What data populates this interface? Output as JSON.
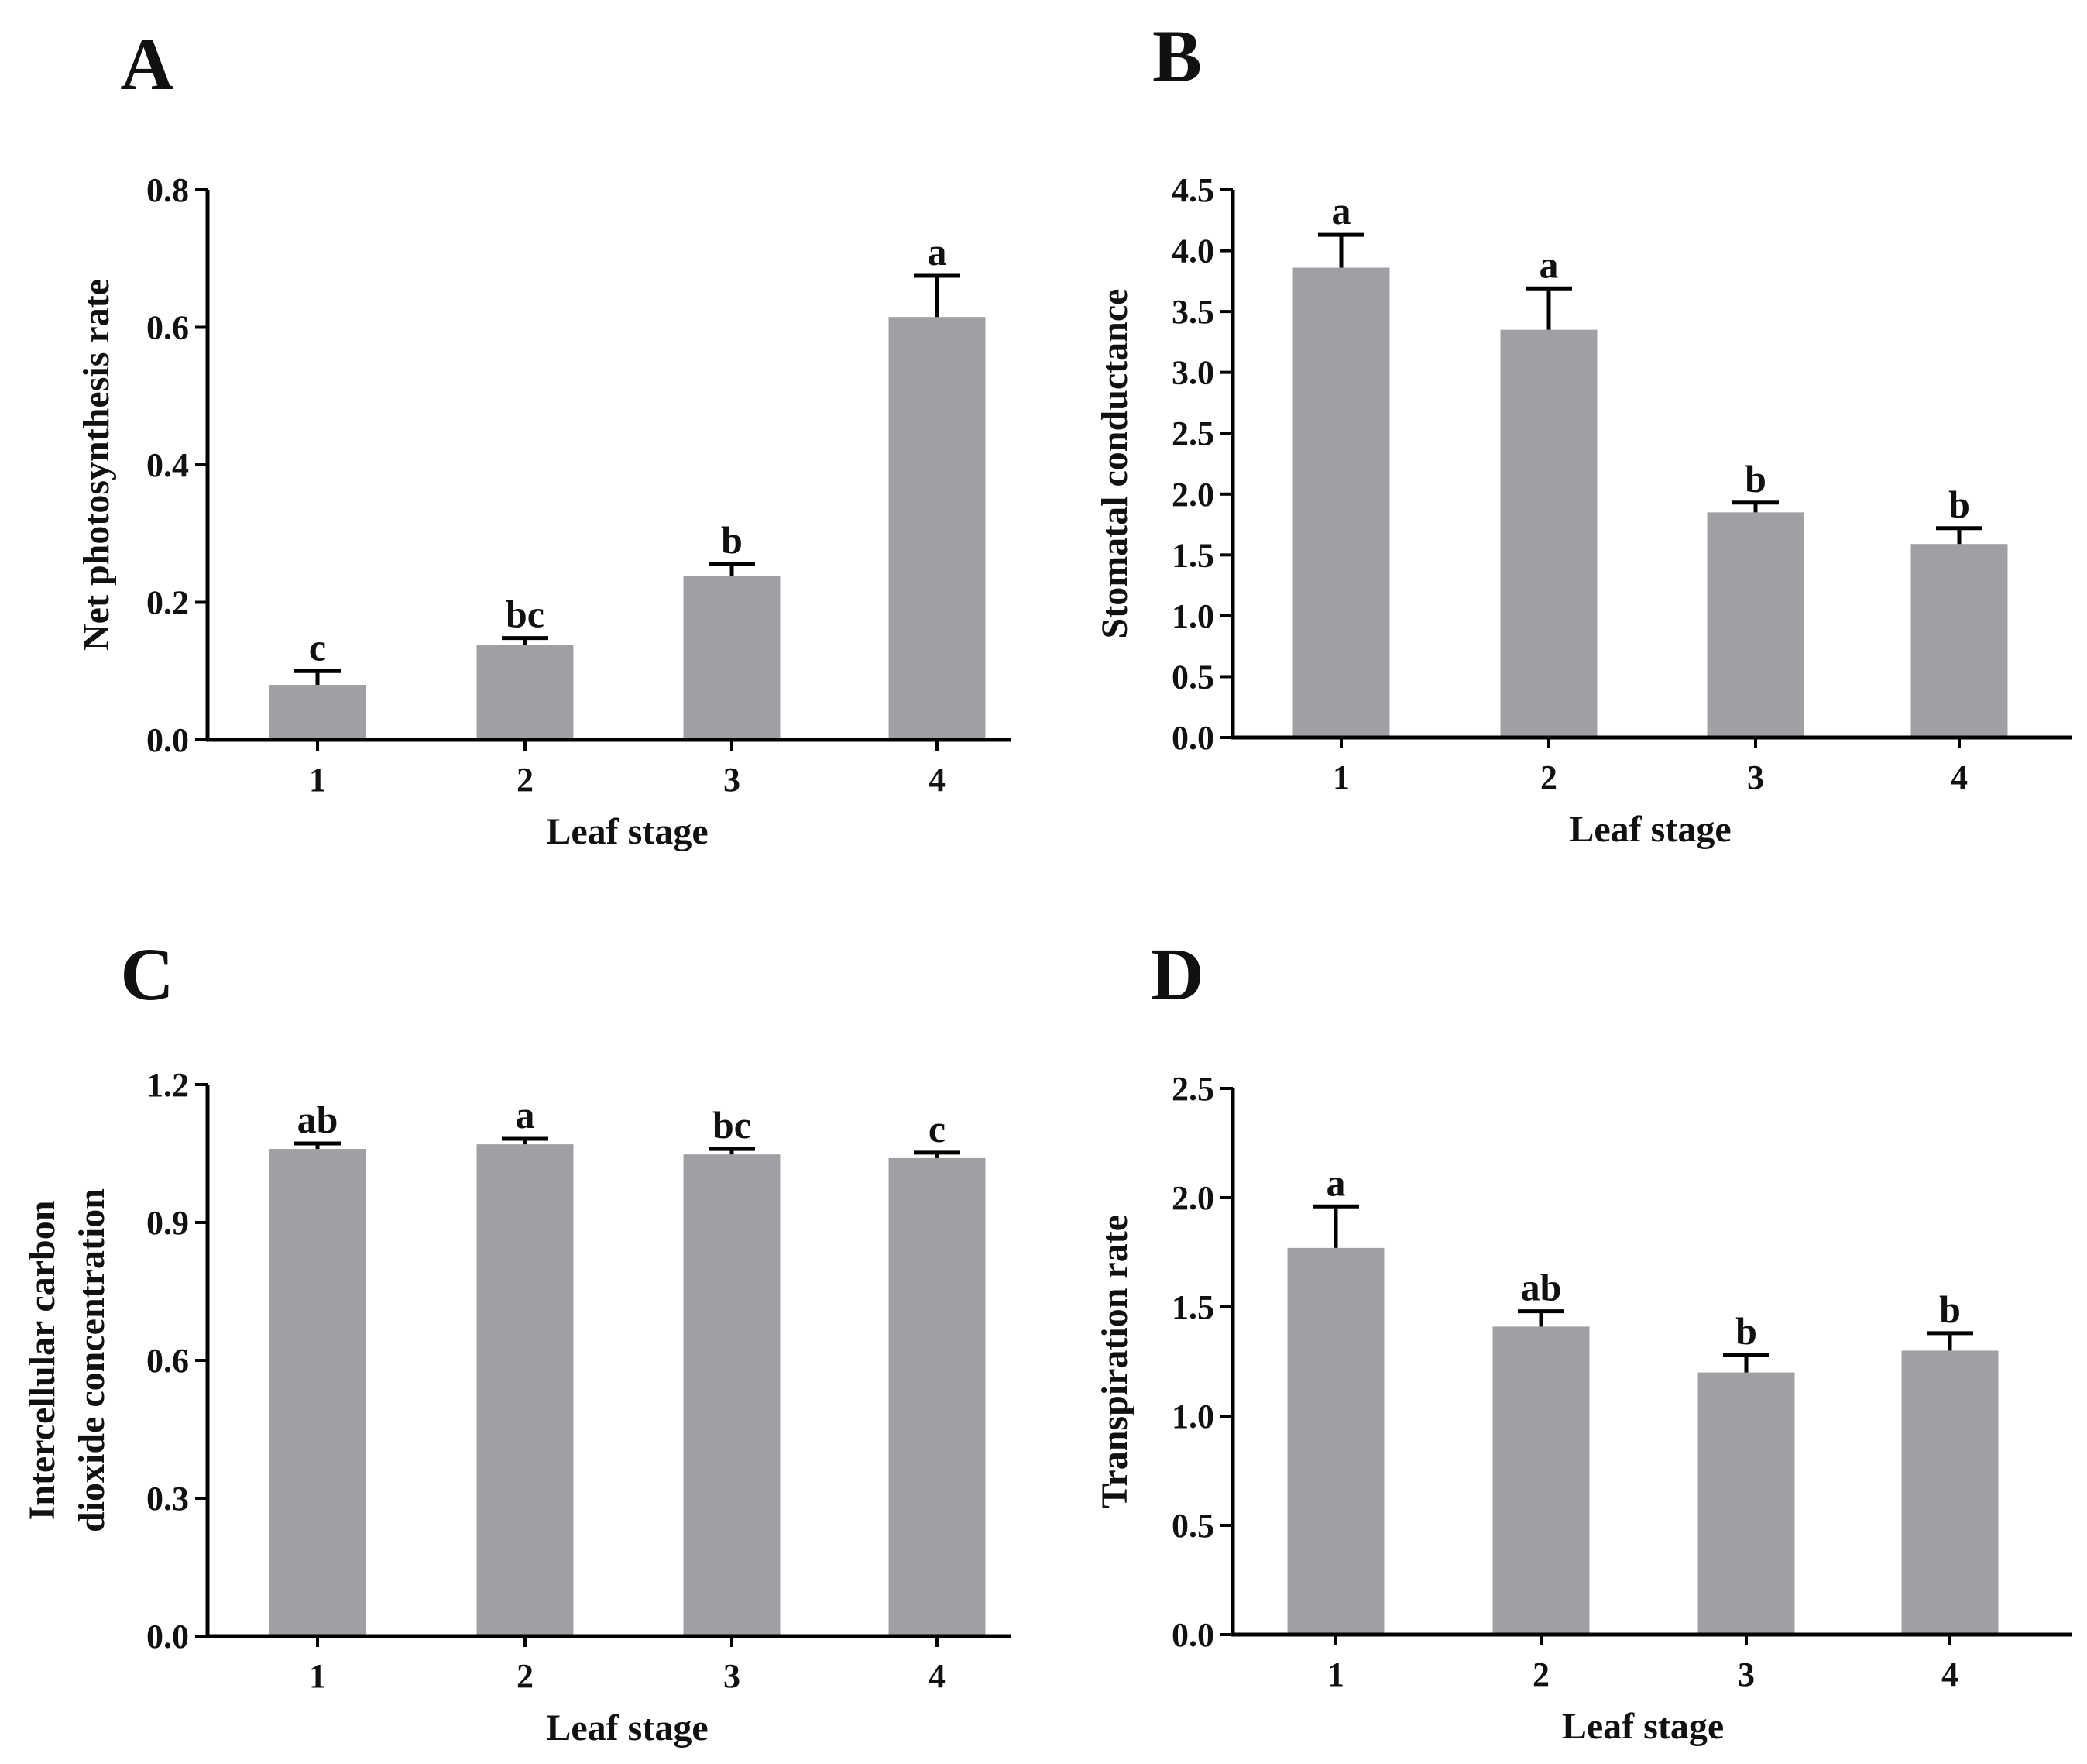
{
  "figure_title": "",
  "chart_data": [
    {
      "panel": "A",
      "type": "bar",
      "categories": [
        "1",
        "2",
        "3",
        "4"
      ],
      "values": [
        0.08,
        0.138,
        0.238,
        0.615
      ],
      "errors": [
        0.02,
        0.01,
        0.018,
        0.06
      ],
      "significance": [
        "c",
        "bc",
        "b",
        "a"
      ],
      "xlabel": "Leaf stage",
      "ylabel": [
        "Net photosynthesis rate"
      ],
      "ylim": [
        0,
        0.8
      ],
      "yticks": [
        "0.0",
        "0.2",
        "0.4",
        "0.6",
        "0.8"
      ],
      "bar_color": "#a0a0a4"
    },
    {
      "panel": "B",
      "type": "bar",
      "categories": [
        "1",
        "2",
        "3",
        "4"
      ],
      "values": [
        3.86,
        3.35,
        1.85,
        1.59
      ],
      "errors": [
        0.27,
        0.34,
        0.08,
        0.13
      ],
      "significance": [
        "a",
        "a",
        "b",
        "b"
      ],
      "xlabel": "Leaf stage",
      "ylabel": [
        "Stomatal conductance"
      ],
      "ylim": [
        0,
        4.5
      ],
      "yticks": [
        "0.0",
        "0.5",
        "1.0",
        "1.5",
        "2.0",
        "2.5",
        "3.0",
        "3.5",
        "4.0",
        "4.5"
      ],
      "bar_color": "#a0a0a4"
    },
    {
      "panel": "C",
      "type": "bar",
      "categories": [
        "1",
        "2",
        "3",
        "4"
      ],
      "values": [
        1.06,
        1.07,
        1.048,
        1.04
      ],
      "errors": [
        0.012,
        0.012,
        0.012,
        0.012
      ],
      "significance": [
        "ab",
        "a",
        "bc",
        "c"
      ],
      "xlabel": "Leaf stage",
      "ylabel": [
        "Intercellular carbon",
        "dioxide concentration"
      ],
      "ylim": [
        0,
        1.2
      ],
      "yticks": [
        "0.0",
        "0.3",
        "0.6",
        "0.9",
        "1.2"
      ],
      "bar_color": "#a0a0a4"
    },
    {
      "panel": "D",
      "type": "bar",
      "categories": [
        "1",
        "2",
        "3",
        "4"
      ],
      "values": [
        1.77,
        1.41,
        1.2,
        1.3
      ],
      "errors": [
        0.19,
        0.07,
        0.08,
        0.08
      ],
      "significance": [
        "a",
        "ab",
        "b",
        "b"
      ],
      "xlabel": "Leaf stage",
      "ylabel": [
        "Transpiration rate"
      ],
      "ylim": [
        0,
        2.5
      ],
      "yticks": [
        "0.0",
        "0.5",
        "1.0",
        "1.5",
        "2.0",
        "2.5"
      ],
      "bar_color": "#a0a0a4"
    }
  ]
}
